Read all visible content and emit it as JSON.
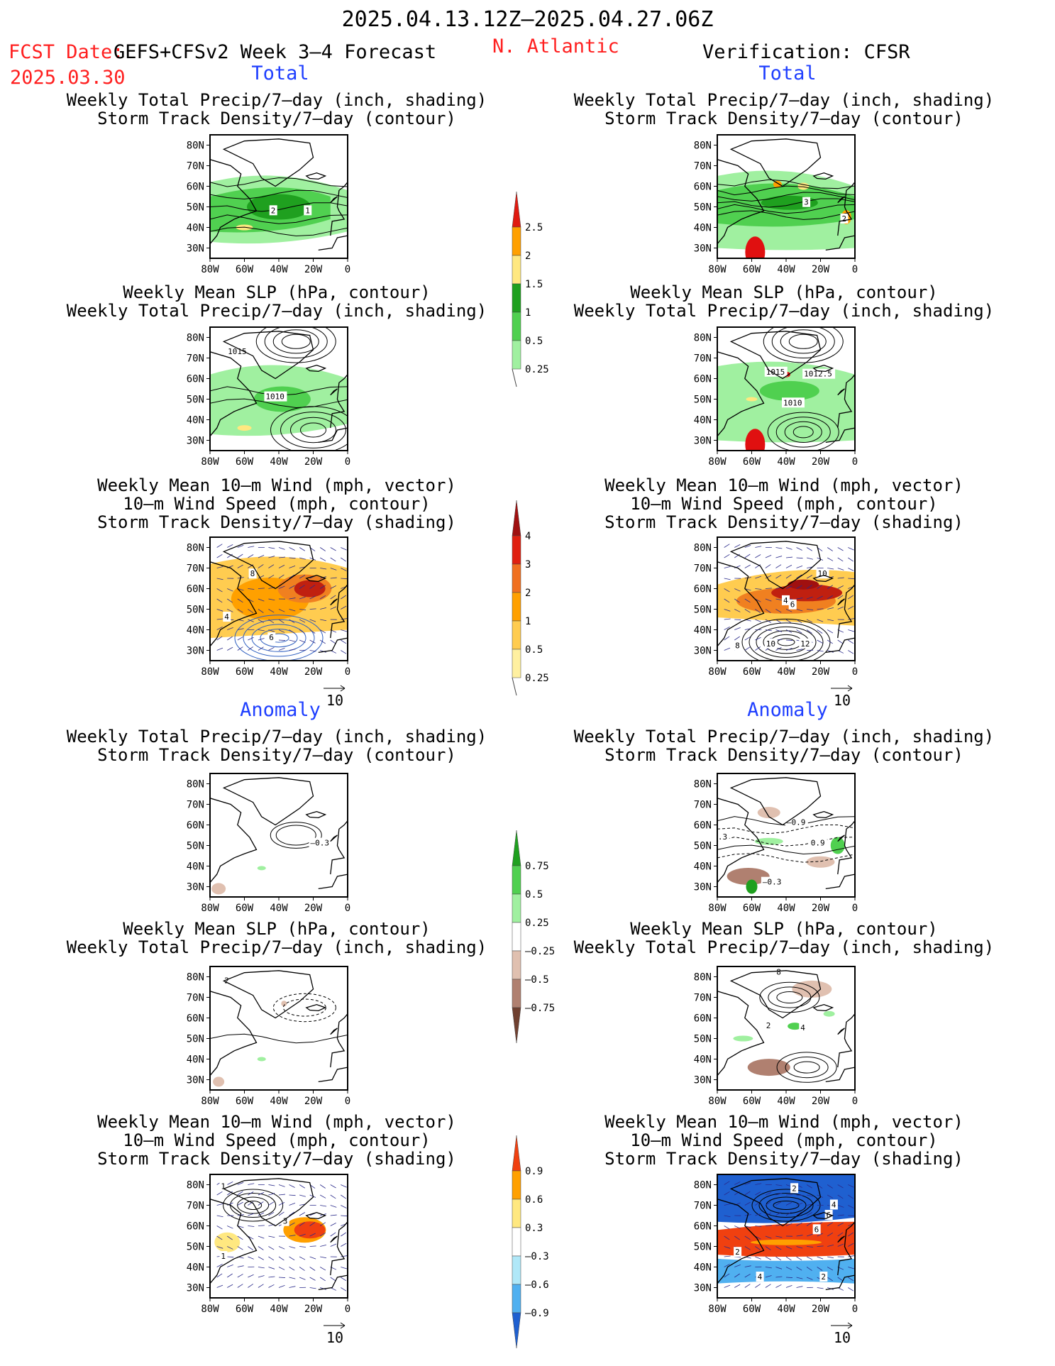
{
  "header": {
    "date_range": "2025.04.13.12Z–2025.04.27.06Z",
    "fcst_label": "FCST Date:",
    "fcst_date": "2025.03.30",
    "model": "GEFS+CFSv2 Week 3–4 Forecast",
    "region": "N. Atlantic",
    "verification": "Verification: CFSR"
  },
  "sections": {
    "total": "Total",
    "anomaly": "Anomaly"
  },
  "panel_titles": {
    "precip_storm": [
      "Weekly Total Precip/7–day (inch, shading)",
      "Storm Track Density/7–day (contour)"
    ],
    "slp_precip": [
      "Weekly Mean SLP (hPa, contour)",
      "Weekly Total Precip/7–day (inch, shading)"
    ],
    "wind_storm": [
      "Weekly Mean 10–m Wind (mph, vector)",
      "10–m Wind Speed (mph, contour)",
      "Storm Track Density/7–day (shading)"
    ]
  },
  "axes": {
    "lat_ticks": [
      "80N",
      "70N",
      "60N",
      "50N",
      "40N",
      "30N"
    ],
    "lon_ticks": [
      "80W",
      "60W",
      "40W",
      "20W",
      "0"
    ]
  },
  "vector_ref": "10",
  "colors": {
    "title_red": "#ff1f1f",
    "title_blue": "#1f3fff",
    "precip_light": "#a0f0a0",
    "precip_mid": "#50d050",
    "precip_dark": "#1fa01f",
    "precip_yellow": "#ffe880",
    "precip_orange": "#ffa000",
    "precip_red": "#e01010",
    "storm_orange": "#f08020",
    "storm_red": "#c02010",
    "dry_brown": "#9a6b5a",
    "cold_blue": "#1f5fd0"
  },
  "colorbars": [
    {
      "id": "precip_total",
      "labels": [
        "2.5",
        "2",
        "1.5",
        "1",
        "0.5",
        "0.25"
      ],
      "colors": [
        "#e01a10",
        "#ffa000",
        "#ffe880",
        "#1fa01f",
        "#50d050",
        "#a0f0a0"
      ]
    },
    {
      "id": "storm_total",
      "labels": [
        "4",
        "3",
        "2",
        "1",
        "0.5",
        "0.25"
      ],
      "colors": [
        "#a01010",
        "#e02010",
        "#f07020",
        "#ffa000",
        "#ffcc50",
        "#fff0a0"
      ]
    },
    {
      "id": "precip_anom",
      "labels": [
        "0.75",
        "0.5",
        "0.25",
        "–0.25",
        "–0.5",
        "–0.75"
      ],
      "colors": [
        "#1fa01f",
        "#50d050",
        "#a0f0a0",
        "#ffffff",
        "#e0c0b0",
        "#b08070",
        "#704030"
      ]
    },
    {
      "id": "storm_anom",
      "labels": [
        "0.9",
        "0.6",
        "0.3",
        "–0.3",
        "–0.6",
        "–0.9"
      ],
      "colors": [
        "#f04010",
        "#ffa000",
        "#ffe880",
        "#ffffff",
        "#b0e8f8",
        "#50b0f0",
        "#1f60d0"
      ]
    }
  ],
  "maps": {
    "m1": {
      "labels": [
        "2",
        "1"
      ]
    },
    "m2": {
      "labels": [
        "1015",
        "1010"
      ]
    },
    "m3": {
      "labels": [
        "8",
        "4",
        "6"
      ]
    },
    "m4": {
      "labels": [
        "3",
        "2"
      ]
    },
    "m5": {
      "labels": [
        "1015",
        "1012.5",
        "1010"
      ]
    },
    "m6": {
      "labels": [
        "10",
        "4",
        "6",
        "10",
        "12",
        "8"
      ]
    },
    "m7": {
      "labels": [
        "–0.3"
      ]
    },
    "m8": {
      "labels": [
        "2"
      ]
    },
    "m9": {
      "labels": [
        "1",
        "3",
        "1"
      ]
    },
    "m10": {
      "labels": [
        "–0.9",
        "0.9",
        "–0.3",
        ".3"
      ]
    },
    "m11": {
      "labels": [
        "8",
        "2",
        "4"
      ]
    },
    "m12": {
      "labels": [
        "2",
        "6",
        "4",
        "2",
        "6",
        "4",
        "2"
      ]
    }
  }
}
